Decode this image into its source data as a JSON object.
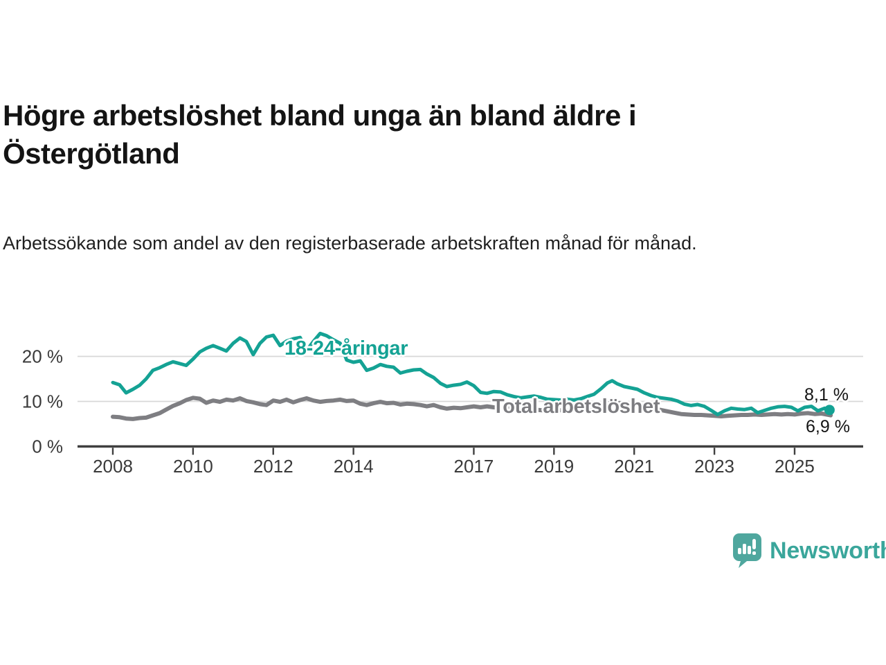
{
  "title": "Högre arbetslöshet bland unga än bland äldre i Östergötland",
  "subtitle": "Arbetssökande som andel av den registerbaserade arbetskraften månad för månad.",
  "branding": {
    "logo_text": "Newsworthy",
    "logo_color": "#4fa79e",
    "text_color": "#3aa69b"
  },
  "chart_data": {
    "type": "line",
    "unit": "%",
    "grid": "horizontal-only",
    "legend_position": "inline-labels",
    "style": {
      "grid_color": "#d8d8d8",
      "axis_color": "#3f3f3f",
      "tick_label_color": "#3a3a3a",
      "background": "#ffffff"
    },
    "x_axis": {
      "ticks": [
        {
          "value": 2008,
          "label": "2008"
        },
        {
          "value": 2010,
          "label": "2010"
        },
        {
          "value": 2012,
          "label": "2012"
        },
        {
          "value": 2014,
          "label": "2014"
        },
        {
          "value": 2017,
          "label": "2017"
        },
        {
          "value": 2019,
          "label": "2019"
        },
        {
          "value": 2021,
          "label": "2021"
        },
        {
          "value": 2023,
          "label": "2023"
        },
        {
          "value": 2025,
          "label": "2025"
        }
      ]
    },
    "y_axis": {
      "ticks": [
        {
          "value": 0,
          "label": "0 %"
        },
        {
          "value": 10,
          "label": "10 %"
        },
        {
          "value": 20,
          "label": "20 %"
        }
      ],
      "range": [
        0,
        26
      ]
    },
    "series": [
      {
        "name": "18-24-åringar",
        "color": "#14a294",
        "stroke_width": 5,
        "end_marker": true,
        "end_label": "8,1 %",
        "end_value": 8.1,
        "points": [
          [
            2008.0,
            14.2
          ],
          [
            2008.17,
            13.7
          ],
          [
            2008.33,
            11.9
          ],
          [
            2008.5,
            12.7
          ],
          [
            2008.67,
            13.6
          ],
          [
            2008.83,
            15.0
          ],
          [
            2009.0,
            16.9
          ],
          [
            2009.17,
            17.5
          ],
          [
            2009.33,
            18.2
          ],
          [
            2009.5,
            18.8
          ],
          [
            2009.67,
            18.4
          ],
          [
            2009.83,
            18.0
          ],
          [
            2010.0,
            19.4
          ],
          [
            2010.17,
            21.0
          ],
          [
            2010.33,
            21.8
          ],
          [
            2010.5,
            22.4
          ],
          [
            2010.67,
            21.8
          ],
          [
            2010.83,
            21.2
          ],
          [
            2011.0,
            22.9
          ],
          [
            2011.17,
            24.1
          ],
          [
            2011.33,
            23.3
          ],
          [
            2011.5,
            20.4
          ],
          [
            2011.67,
            22.9
          ],
          [
            2011.83,
            24.3
          ],
          [
            2012.0,
            24.7
          ],
          [
            2012.17,
            22.4
          ],
          [
            2012.33,
            23.4
          ],
          [
            2012.5,
            23.9
          ],
          [
            2012.67,
            24.2
          ],
          [
            2012.83,
            21.3
          ],
          [
            2013.0,
            23.3
          ],
          [
            2013.17,
            25.1
          ],
          [
            2013.33,
            24.6
          ],
          [
            2013.5,
            23.7
          ],
          [
            2013.67,
            22.9
          ],
          [
            2013.83,
            19.2
          ],
          [
            2014.0,
            18.7
          ],
          [
            2014.17,
            19.0
          ],
          [
            2014.33,
            16.9
          ],
          [
            2014.5,
            17.4
          ],
          [
            2014.67,
            18.2
          ],
          [
            2014.83,
            17.8
          ],
          [
            2015.0,
            17.6
          ],
          [
            2015.17,
            16.3
          ],
          [
            2015.33,
            16.7
          ],
          [
            2015.5,
            17.0
          ],
          [
            2015.67,
            17.1
          ],
          [
            2015.83,
            16.1
          ],
          [
            2016.0,
            15.3
          ],
          [
            2016.17,
            14.0
          ],
          [
            2016.33,
            13.3
          ],
          [
            2016.5,
            13.6
          ],
          [
            2016.67,
            13.8
          ],
          [
            2016.83,
            14.3
          ],
          [
            2017.0,
            13.5
          ],
          [
            2017.17,
            12.0
          ],
          [
            2017.33,
            11.8
          ],
          [
            2017.5,
            12.2
          ],
          [
            2017.67,
            12.1
          ],
          [
            2017.83,
            11.5
          ],
          [
            2018.0,
            11.1
          ],
          [
            2018.17,
            10.8
          ],
          [
            2018.33,
            11.0
          ],
          [
            2018.5,
            11.2
          ],
          [
            2018.67,
            10.9
          ],
          [
            2018.83,
            10.5
          ],
          [
            2019.0,
            10.4
          ],
          [
            2019.17,
            10.3
          ],
          [
            2019.33,
            10.5
          ],
          [
            2019.5,
            10.3
          ],
          [
            2019.67,
            10.6
          ],
          [
            2019.83,
            11.1
          ],
          [
            2020.0,
            11.6
          ],
          [
            2020.17,
            12.8
          ],
          [
            2020.33,
            14.1
          ],
          [
            2020.45,
            14.6
          ],
          [
            2020.58,
            13.9
          ],
          [
            2020.75,
            13.3
          ],
          [
            2020.92,
            13.0
          ],
          [
            2021.08,
            12.7
          ],
          [
            2021.25,
            11.9
          ],
          [
            2021.42,
            11.3
          ],
          [
            2021.58,
            10.9
          ],
          [
            2021.75,
            10.7
          ],
          [
            2021.92,
            10.5
          ],
          [
            2022.08,
            10.1
          ],
          [
            2022.25,
            9.4
          ],
          [
            2022.42,
            9.1
          ],
          [
            2022.58,
            9.3
          ],
          [
            2022.75,
            8.9
          ],
          [
            2022.92,
            8.0
          ],
          [
            2023.08,
            7.1
          ],
          [
            2023.25,
            7.9
          ],
          [
            2023.42,
            8.5
          ],
          [
            2023.58,
            8.3
          ],
          [
            2023.75,
            8.2
          ],
          [
            2023.92,
            8.5
          ],
          [
            2024.08,
            7.5
          ],
          [
            2024.25,
            8.0
          ],
          [
            2024.42,
            8.5
          ],
          [
            2024.58,
            8.8
          ],
          [
            2024.75,
            8.9
          ],
          [
            2024.92,
            8.7
          ],
          [
            2025.08,
            7.9
          ],
          [
            2025.25,
            8.7
          ],
          [
            2025.42,
            8.9
          ],
          [
            2025.58,
            7.9
          ],
          [
            2025.75,
            8.5
          ],
          [
            2025.87,
            8.1
          ]
        ]
      },
      {
        "name": "Total arbetslöshet",
        "color": "#7e7e82",
        "stroke_width": 6,
        "end_marker": false,
        "end_label": "6,9 %",
        "end_value": 6.9,
        "points": [
          [
            2008.0,
            6.6
          ],
          [
            2008.17,
            6.5
          ],
          [
            2008.33,
            6.2
          ],
          [
            2008.5,
            6.1
          ],
          [
            2008.67,
            6.3
          ],
          [
            2008.83,
            6.4
          ],
          [
            2009.0,
            6.9
          ],
          [
            2009.17,
            7.4
          ],
          [
            2009.33,
            8.2
          ],
          [
            2009.5,
            9.0
          ],
          [
            2009.67,
            9.6
          ],
          [
            2009.83,
            10.3
          ],
          [
            2010.0,
            10.8
          ],
          [
            2010.17,
            10.6
          ],
          [
            2010.33,
            9.7
          ],
          [
            2010.5,
            10.2
          ],
          [
            2010.67,
            9.9
          ],
          [
            2010.83,
            10.4
          ],
          [
            2011.0,
            10.2
          ],
          [
            2011.17,
            10.7
          ],
          [
            2011.33,
            10.1
          ],
          [
            2011.5,
            9.8
          ],
          [
            2011.67,
            9.4
          ],
          [
            2011.83,
            9.2
          ],
          [
            2012.0,
            10.2
          ],
          [
            2012.17,
            9.9
          ],
          [
            2012.33,
            10.4
          ],
          [
            2012.5,
            9.8
          ],
          [
            2012.67,
            10.3
          ],
          [
            2012.83,
            10.7
          ],
          [
            2013.0,
            10.2
          ],
          [
            2013.17,
            9.9
          ],
          [
            2013.33,
            10.1
          ],
          [
            2013.5,
            10.2
          ],
          [
            2013.67,
            10.4
          ],
          [
            2013.83,
            10.1
          ],
          [
            2014.0,
            10.2
          ],
          [
            2014.17,
            9.5
          ],
          [
            2014.33,
            9.2
          ],
          [
            2014.5,
            9.6
          ],
          [
            2014.67,
            9.9
          ],
          [
            2014.83,
            9.6
          ],
          [
            2015.0,
            9.7
          ],
          [
            2015.17,
            9.3
          ],
          [
            2015.33,
            9.5
          ],
          [
            2015.5,
            9.4
          ],
          [
            2015.67,
            9.2
          ],
          [
            2015.83,
            8.9
          ],
          [
            2016.0,
            9.2
          ],
          [
            2016.17,
            8.7
          ],
          [
            2016.33,
            8.4
          ],
          [
            2016.5,
            8.6
          ],
          [
            2016.67,
            8.5
          ],
          [
            2016.83,
            8.7
          ],
          [
            2017.0,
            8.9
          ],
          [
            2017.17,
            8.7
          ],
          [
            2017.33,
            8.9
          ],
          [
            2017.5,
            8.7
          ],
          [
            2017.67,
            8.6
          ],
          [
            2017.83,
            8.4
          ],
          [
            2018.0,
            8.6
          ],
          [
            2018.25,
            8.3
          ],
          [
            2018.5,
            8.2
          ],
          [
            2018.75,
            8.0
          ],
          [
            2019.0,
            8.1
          ],
          [
            2019.25,
            8.0
          ],
          [
            2019.5,
            8.2
          ],
          [
            2019.75,
            8.3
          ],
          [
            2020.0,
            8.6
          ],
          [
            2020.17,
            9.2
          ],
          [
            2020.33,
            9.6
          ],
          [
            2020.5,
            9.8
          ],
          [
            2020.67,
            9.6
          ],
          [
            2020.83,
            9.3
          ],
          [
            2021.0,
            9.1
          ],
          [
            2021.17,
            8.9
          ],
          [
            2021.33,
            8.6
          ],
          [
            2021.5,
            8.3
          ],
          [
            2021.67,
            8.1
          ],
          [
            2021.83,
            7.8
          ],
          [
            2022.0,
            7.5
          ],
          [
            2022.17,
            7.2
          ],
          [
            2022.33,
            7.1
          ],
          [
            2022.5,
            7.0
          ],
          [
            2022.67,
            7.0
          ],
          [
            2022.83,
            6.9
          ],
          [
            2023.0,
            6.8
          ],
          [
            2023.17,
            6.7
          ],
          [
            2023.33,
            6.8
          ],
          [
            2023.5,
            6.9
          ],
          [
            2023.67,
            7.0
          ],
          [
            2023.83,
            7.0
          ],
          [
            2024.0,
            7.1
          ],
          [
            2024.17,
            7.0
          ],
          [
            2024.33,
            7.1
          ],
          [
            2024.5,
            7.2
          ],
          [
            2024.67,
            7.1
          ],
          [
            2024.83,
            7.2
          ],
          [
            2025.0,
            7.1
          ],
          [
            2025.17,
            7.3
          ],
          [
            2025.33,
            7.4
          ],
          [
            2025.5,
            7.2
          ],
          [
            2025.67,
            7.3
          ],
          [
            2025.9,
            6.9
          ]
        ]
      }
    ]
  }
}
